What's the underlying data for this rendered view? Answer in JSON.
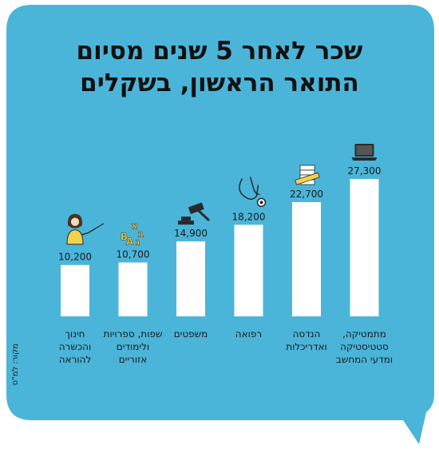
{
  "title_lines": [
    "שכר לאחר 5 שנים מסיום",
    "התואר הראשון, בשקלים"
  ],
  "source": "מקור: למ\"ס",
  "colors": {
    "background": "#4bb5d9",
    "bar": "#ffffff",
    "text": "#1a1a1a",
    "icon": "#2a2a2a",
    "icon_accent": "#f2d24b"
  },
  "chart_data": {
    "type": "bar",
    "title": "שכר לאחר 5 שנים מסיום התואר הראשון, בשקלים",
    "ylim": [
      0,
      27300
    ],
    "grid": false,
    "categories": [
      "חינוך והכשרה להוראה",
      "שפות, ספרויות ולימודים אזוריים",
      "משפטים",
      "רפואה",
      "הנדסה ואדריכלות",
      "מתמטיקה, סטטיסטיקה ומדעי המחשב"
    ],
    "category_lines": [
      [
        "חינוך",
        "והכשרה",
        "להוראה"
      ],
      [
        "שפות, ספרויות",
        "ולימודים",
        "אזוריים"
      ],
      [
        "משפטים"
      ],
      [
        "רפואה"
      ],
      [
        "הנדסה",
        "ואדריכלות"
      ],
      [
        "מתמטיקה,",
        "סטטיסטיקה",
        "ומדעי המחשב"
      ]
    ],
    "values": [
      10200,
      10700,
      14900,
      18200,
      22700,
      27300
    ],
    "value_labels": [
      "10,200",
      "10,700",
      "14,900",
      "18,200",
      "22,700",
      "27,300"
    ],
    "icons": [
      "teacher-icon",
      "letters-icon",
      "gavel-icon",
      "stethoscope-icon",
      "ruler-blueprints-icon",
      "laptop-icon"
    ]
  }
}
